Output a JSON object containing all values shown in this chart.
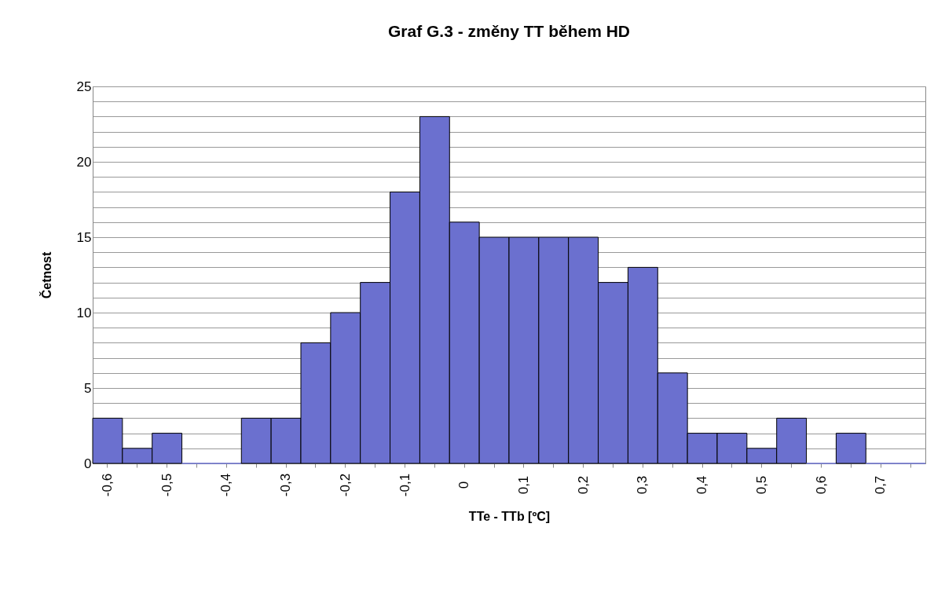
{
  "chart_data": {
    "type": "bar",
    "title": "Graf G.3 - změny TT během HD",
    "xlabel": "TTe - TTb [ºC]",
    "ylabel": "Četnost",
    "categories": [
      "-0,6",
      null,
      "-0,5",
      null,
      "-0,4",
      null,
      "-0,3",
      null,
      "-0,2",
      null,
      "-0,1",
      null,
      "0",
      null,
      "0,1",
      null,
      "0,2",
      null,
      "0,3",
      null,
      "0,4",
      null,
      "0,5",
      null,
      "0,6",
      null,
      "0,7",
      null
    ],
    "values": [
      3,
      1,
      2,
      0,
      0,
      3,
      3,
      8,
      10,
      12,
      18,
      23,
      16,
      15,
      15,
      15,
      15,
      12,
      13,
      6,
      2,
      2,
      1,
      3,
      0,
      2,
      0,
      0
    ],
    "color": "#6b70cf",
    "ylim": [
      0,
      25
    ],
    "yticks": [
      0,
      {
        "value": 1,
        "label": null
      },
      {
        "value": 2,
        "label": null
      },
      {
        "value": 3,
        "label": null
      },
      {
        "value": 4,
        "label": null
      },
      5,
      {
        "value": 6,
        "label": null
      },
      {
        "value": 7,
        "label": null
      },
      {
        "value": 8,
        "label": null
      },
      {
        "value": 9,
        "label": null
      },
      10,
      {
        "value": 11,
        "label": null
      },
      {
        "value": 12,
        "label": null
      },
      {
        "value": 13,
        "label": null
      },
      {
        "value": 14,
        "label": null
      },
      15,
      {
        "value": 16,
        "label": null
      },
      {
        "value": 17,
        "label": null
      },
      {
        "value": 18,
        "label": null
      },
      {
        "value": 19,
        "label": null
      },
      20,
      {
        "value": 21,
        "label": null
      },
      {
        "value": 22,
        "label": null
      },
      {
        "value": 23,
        "label": null
      },
      {
        "value": 24,
        "label": null
      },
      25
    ],
    "grid": "y"
  }
}
